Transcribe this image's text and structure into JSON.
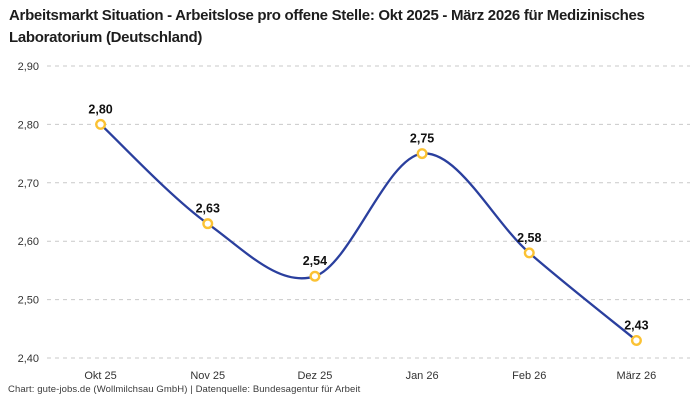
{
  "header": {
    "title": "Arbeitsmarkt Situation - Arbeitslose pro offene Stelle: Okt 2025 - März 2026 für Medizinisches Laboratorium (Deutschland)"
  },
  "footer": {
    "text": "Chart: gute-jobs.de (Wollmilchsau GmbH) | Datenquelle: Bundesagentur für Arbeit"
  },
  "chart_data": {
    "type": "line",
    "title": "Arbeitsmarkt Situation - Arbeitslose pro offene Stelle: Okt 2025 - März 2026 für Medizinisches Laboratorium (Deutschland)",
    "categories": [
      "Okt 25",
      "Nov 25",
      "Dez 25",
      "Jan 26",
      "Feb 26",
      "März 26"
    ],
    "series": [
      {
        "name": "Arbeitslose pro offene Stelle",
        "values": [
          2.8,
          2.63,
          2.54,
          2.75,
          2.58,
          2.43
        ]
      }
    ],
    "point_labels": [
      "2,80",
      "2,63",
      "2,54",
      "2,75",
      "2,58",
      "2,43"
    ],
    "y_ticks": {
      "values": [
        2.9,
        2.8,
        2.7,
        2.6,
        2.5,
        2.4
      ],
      "labels": [
        "2,90",
        "2,80",
        "2,70",
        "2,60",
        "2,50",
        "2,40"
      ]
    },
    "ylim": [
      2.4,
      2.9
    ],
    "xlabel": "",
    "ylabel": "",
    "grid": "horizontal-dashed",
    "legend": "none",
    "line_smoothing": "spline",
    "colors": {
      "line": "#2a3f9e",
      "marker_stroke": "#fbc234",
      "marker_fill": "#ffffff",
      "grid": "#c9c9c9",
      "tick_text": "#333333",
      "point_label_text": "#111111"
    }
  }
}
